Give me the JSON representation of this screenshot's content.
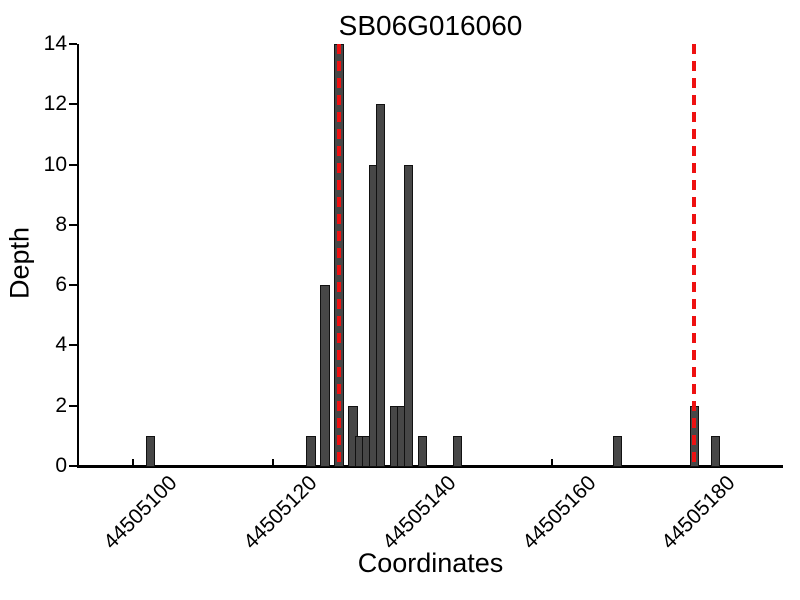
{
  "title": "SB06G016060",
  "axes": {
    "xlabel": "Coordinates",
    "ylabel": "Depth"
  },
  "chart_data": {
    "type": "bar",
    "title": "SB06G016060",
    "xlabel": "Coordinates",
    "ylabel": "Depth",
    "bar_color": "#474747",
    "bar_edge_color": "#111111",
    "background_color": "#ffffff",
    "grid": false,
    "legend": "none",
    "ylim": [
      0,
      14
    ],
    "xlim": [
      44505092,
      44505193
    ],
    "yticks": [
      0,
      2,
      4,
      6,
      8,
      10,
      12,
      14
    ],
    "xticks": [
      44505100,
      44505120,
      44505140,
      44505160,
      44505180
    ],
    "x": [
      44505102,
      44505125,
      44505127,
      44505129,
      44505131,
      44505132,
      44505133,
      44505134,
      44505135,
      44505137,
      44505138,
      44505139,
      44505141,
      44505146,
      44505169,
      44505180,
      44505183
    ],
    "values": [
      1,
      1,
      6,
      14,
      2,
      1,
      1,
      10,
      12,
      2,
      2,
      10,
      1,
      1,
      1,
      2,
      1
    ],
    "bin_width": 1,
    "vlines": [
      {
        "x": 44505129.5,
        "style": "dashed",
        "color": "#ee1111"
      },
      {
        "x": 44505180.5,
        "style": "dashed",
        "color": "#ee1111"
      }
    ]
  }
}
